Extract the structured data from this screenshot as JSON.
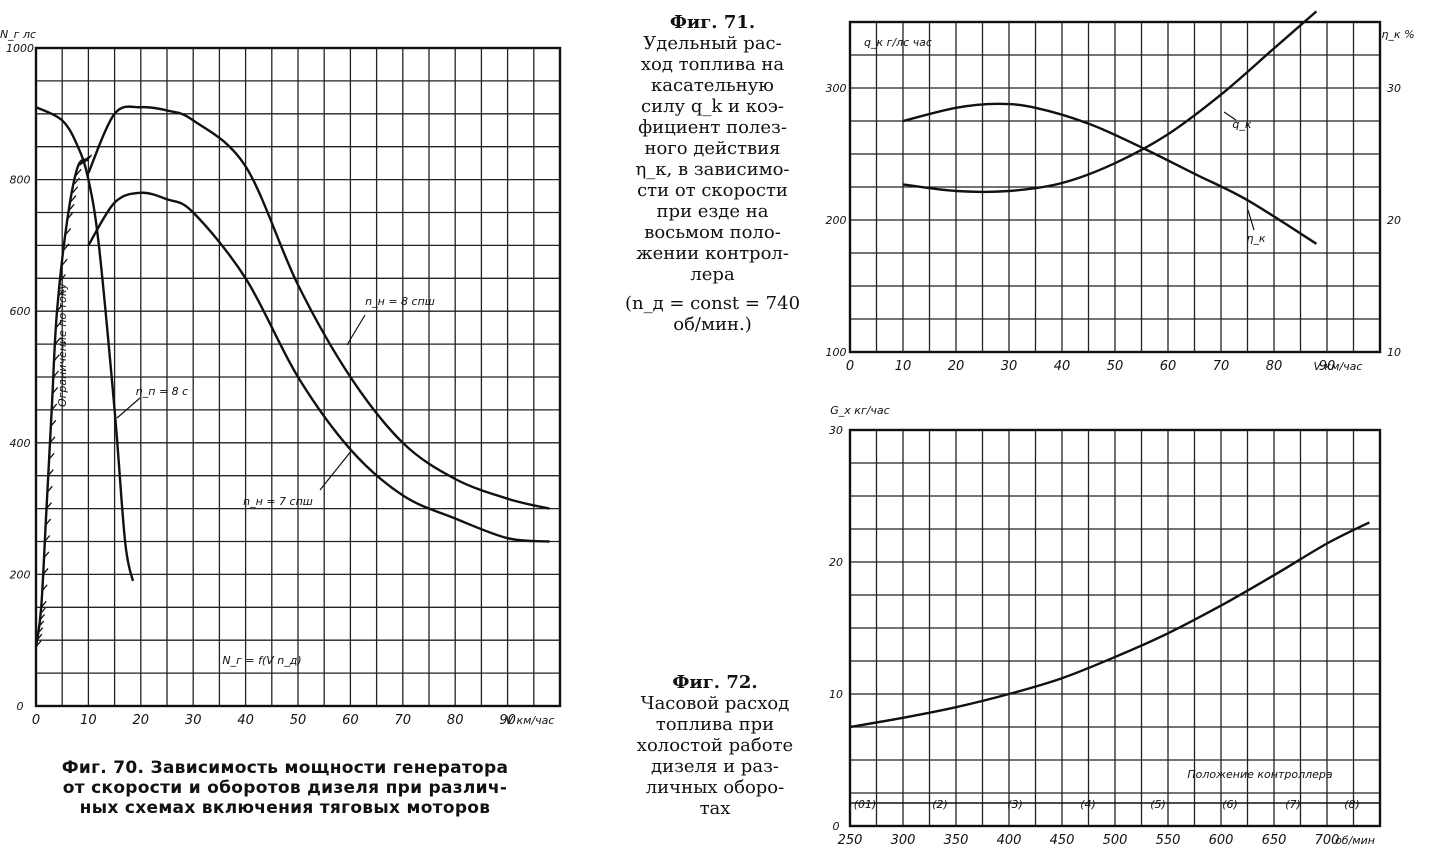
{
  "chart_data": [
    {
      "id": "fig70",
      "type": "line",
      "y_unit": "N_г лс",
      "x_unit": "V км/час",
      "xlim": [
        0,
        100
      ],
      "ylim": [
        0,
        1000
      ],
      "x_ticks": [
        "0",
        "10",
        "20",
        "30",
        "40",
        "50",
        "60",
        "70",
        "80",
        "90"
      ],
      "y_ticks": [
        {
          "value": 1000,
          "label": "1000"
        },
        {
          "value": 800,
          "label": "800"
        },
        {
          "value": 600,
          "label": "600"
        },
        {
          "value": 400,
          "label": "400"
        },
        {
          "value": 200,
          "label": "200"
        },
        {
          "value": 0,
          "label": "0"
        }
      ],
      "series": [
        {
          "name": "n_н = 8 спш",
          "x": [
            10,
            15,
            20,
            25,
            30,
            40,
            50,
            60,
            70,
            80,
            90,
            98
          ],
          "y": [
            810,
            900,
            910,
            905,
            890,
            820,
            640,
            500,
            400,
            345,
            315,
            300
          ]
        },
        {
          "name": "n_н = 7 спш",
          "x": [
            10,
            15,
            20,
            25,
            30,
            40,
            50,
            60,
            70,
            80,
            90,
            98
          ],
          "y": [
            700,
            765,
            780,
            770,
            750,
            650,
            500,
            390,
            320,
            285,
            255,
            250
          ]
        },
        {
          "name": "n_п = 8 с",
          "x": [
            0,
            5,
            8,
            10,
            12,
            15,
            17,
            18.5
          ],
          "y": [
            910,
            890,
            850,
            800,
            700,
            450,
            250,
            190
          ]
        }
      ],
      "restriction_label": "Ограничение по току",
      "bottom_label": "N_г = f(V n_д)"
    },
    {
      "id": "fig71",
      "type": "line",
      "y_unit": "q_к г/лс час",
      "y2_unit": "η_к %",
      "x_unit": "V км/час",
      "xlim": [
        0,
        100
      ],
      "ylim": [
        100,
        350
      ],
      "y2lim": [
        10,
        35
      ],
      "x_ticks": [
        "0",
        "10",
        "20",
        "30",
        "40",
        "50",
        "60",
        "70",
        "80",
        "90"
      ],
      "y_ticks": [
        "300",
        "200",
        "100"
      ],
      "y2_ticks": [
        "30",
        "20",
        "10"
      ],
      "series": [
        {
          "name": "q_к",
          "x": [
            10,
            20,
            30,
            40,
            50,
            60,
            70,
            80,
            88
          ],
          "y": [
            227,
            222,
            222,
            228,
            243,
            265,
            295,
            330,
            358
          ]
        },
        {
          "name": "η_к",
          "x": [
            10,
            20,
            28,
            35,
            45,
            55,
            65,
            75,
            88
          ],
          "y2": [
            27.5,
            28.5,
            28.8,
            28.5,
            27.3,
            25.5,
            23.5,
            21.5,
            18.2
          ]
        }
      ],
      "curve_labels": [
        "q_к",
        "η_к"
      ]
    },
    {
      "id": "fig72",
      "type": "line",
      "y_unit": "G_х кг/час",
      "x_unit": "об/мин",
      "xlim": [
        250,
        750
      ],
      "ylim": [
        0,
        30
      ],
      "x_ticks": [
        "250",
        "300",
        "350",
        "400",
        "450",
        "500",
        "550",
        "600",
        "650",
        "700"
      ],
      "y_ticks": [
        "30",
        "20",
        "10",
        "0"
      ],
      "series": [
        {
          "name": "G_х",
          "x": [
            250,
            300,
            350,
            400,
            450,
            500,
            550,
            600,
            650,
            700,
            740
          ],
          "y": [
            7.5,
            8.2,
            9.0,
            10.0,
            11.2,
            12.8,
            14.6,
            16.7,
            19.0,
            21.4,
            23.0
          ]
        }
      ],
      "controller_label": "Положение контроллера",
      "controller_positions": [
        "(0)",
        "(1)",
        "(2)",
        "(3)",
        "(4)",
        "(5)",
        "(6)",
        "(7)",
        "(8)"
      ]
    }
  ],
  "captions": {
    "fig70": [
      "Фиг. 70. Зависимость мощности генератора",
      "от скорости и оборотов дизеля при различ-",
      "ных схемах включения тяговых моторов"
    ],
    "fig71_title": "Фиг. 71.",
    "fig71": [
      "Удельный рас-",
      "ход топлива на",
      "касательную",
      "силу q_k и коэ-",
      "фициент полез-",
      "ного действия",
      "η_к, в зависимо-",
      "сти от скорости",
      "при езде на",
      "восьмом поло-",
      "жении контрол-",
      "лера"
    ],
    "fig71_const": "(n_д = const = 740 об/мин.)",
    "fig72_title": "Фиг. 72.",
    "fig72": [
      "Часовой расход",
      "топлива при",
      "холостой работе",
      "дизеля и раз-",
      "личных оборо-",
      "тах"
    ]
  }
}
